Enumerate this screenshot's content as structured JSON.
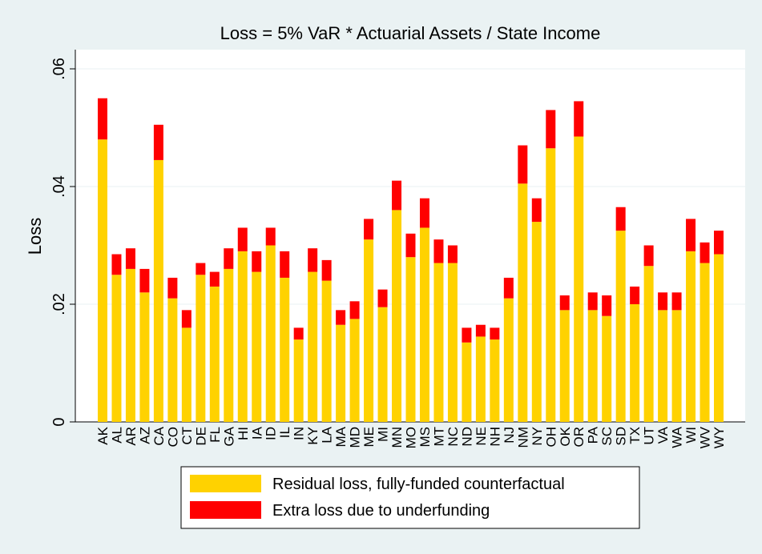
{
  "chart_data": {
    "type": "stacked_bar",
    "title": "Loss = 5% VaR * Actuarial Assets / State Income",
    "y_label": "Loss",
    "categories": [
      "AK",
      "AL",
      "AR",
      "AZ",
      "CA",
      "CO",
      "CT",
      "DE",
      "FL",
      "GA",
      "HI",
      "IA",
      "ID",
      "IL",
      "IN",
      "KY",
      "LA",
      "MA",
      "MD",
      "ME",
      "MI",
      "MN",
      "MO",
      "MS",
      "MT",
      "NC",
      "ND",
      "NE",
      "NH",
      "NJ",
      "NM",
      "NY",
      "OH",
      "OK",
      "OR",
      "PA",
      "SC",
      "SD",
      "TX",
      "UT",
      "VA",
      "WA",
      "WI",
      "WV",
      "WY"
    ],
    "series": [
      {
        "name": "Residual loss, fully-funded counterfactual",
        "color": "#ffd200",
        "values": [
          0.048,
          0.025,
          0.026,
          0.022,
          0.0445,
          0.021,
          0.016,
          0.025,
          0.023,
          0.026,
          0.029,
          0.0255,
          0.03,
          0.0245,
          0.014,
          0.0255,
          0.024,
          0.0165,
          0.0175,
          0.031,
          0.0195,
          0.036,
          0.028,
          0.033,
          0.027,
          0.027,
          0.0135,
          0.0145,
          0.014,
          0.021,
          0.0405,
          0.034,
          0.0465,
          0.019,
          0.0485,
          0.019,
          0.018,
          0.0325,
          0.02,
          0.0265,
          0.019,
          0.019,
          0.029,
          0.027,
          0.0285
        ]
      },
      {
        "name": "Extra loss due to underfunding",
        "color": "#ff0000",
        "values": [
          0.007,
          0.0035,
          0.0035,
          0.004,
          0.006,
          0.0035,
          0.003,
          0.002,
          0.0025,
          0.0035,
          0.004,
          0.0035,
          0.003,
          0.0045,
          0.002,
          0.004,
          0.0035,
          0.0025,
          0.003,
          0.0035,
          0.003,
          0.005,
          0.004,
          0.005,
          0.004,
          0.003,
          0.0025,
          0.002,
          0.002,
          0.0035,
          0.0065,
          0.004,
          0.0065,
          0.0025,
          0.006,
          0.003,
          0.0035,
          0.004,
          0.003,
          0.0035,
          0.003,
          0.003,
          0.0055,
          0.0035,
          0.004
        ]
      }
    ],
    "ylim": [
      0,
      0.06
    ],
    "yticks": [
      0,
      {
        "value": 0.02,
        "label": ".02"
      },
      {
        "value": 0.04,
        "label": ".04"
      },
      {
        "value": 0.06,
        "label": ".06"
      }
    ],
    "grid": true
  }
}
